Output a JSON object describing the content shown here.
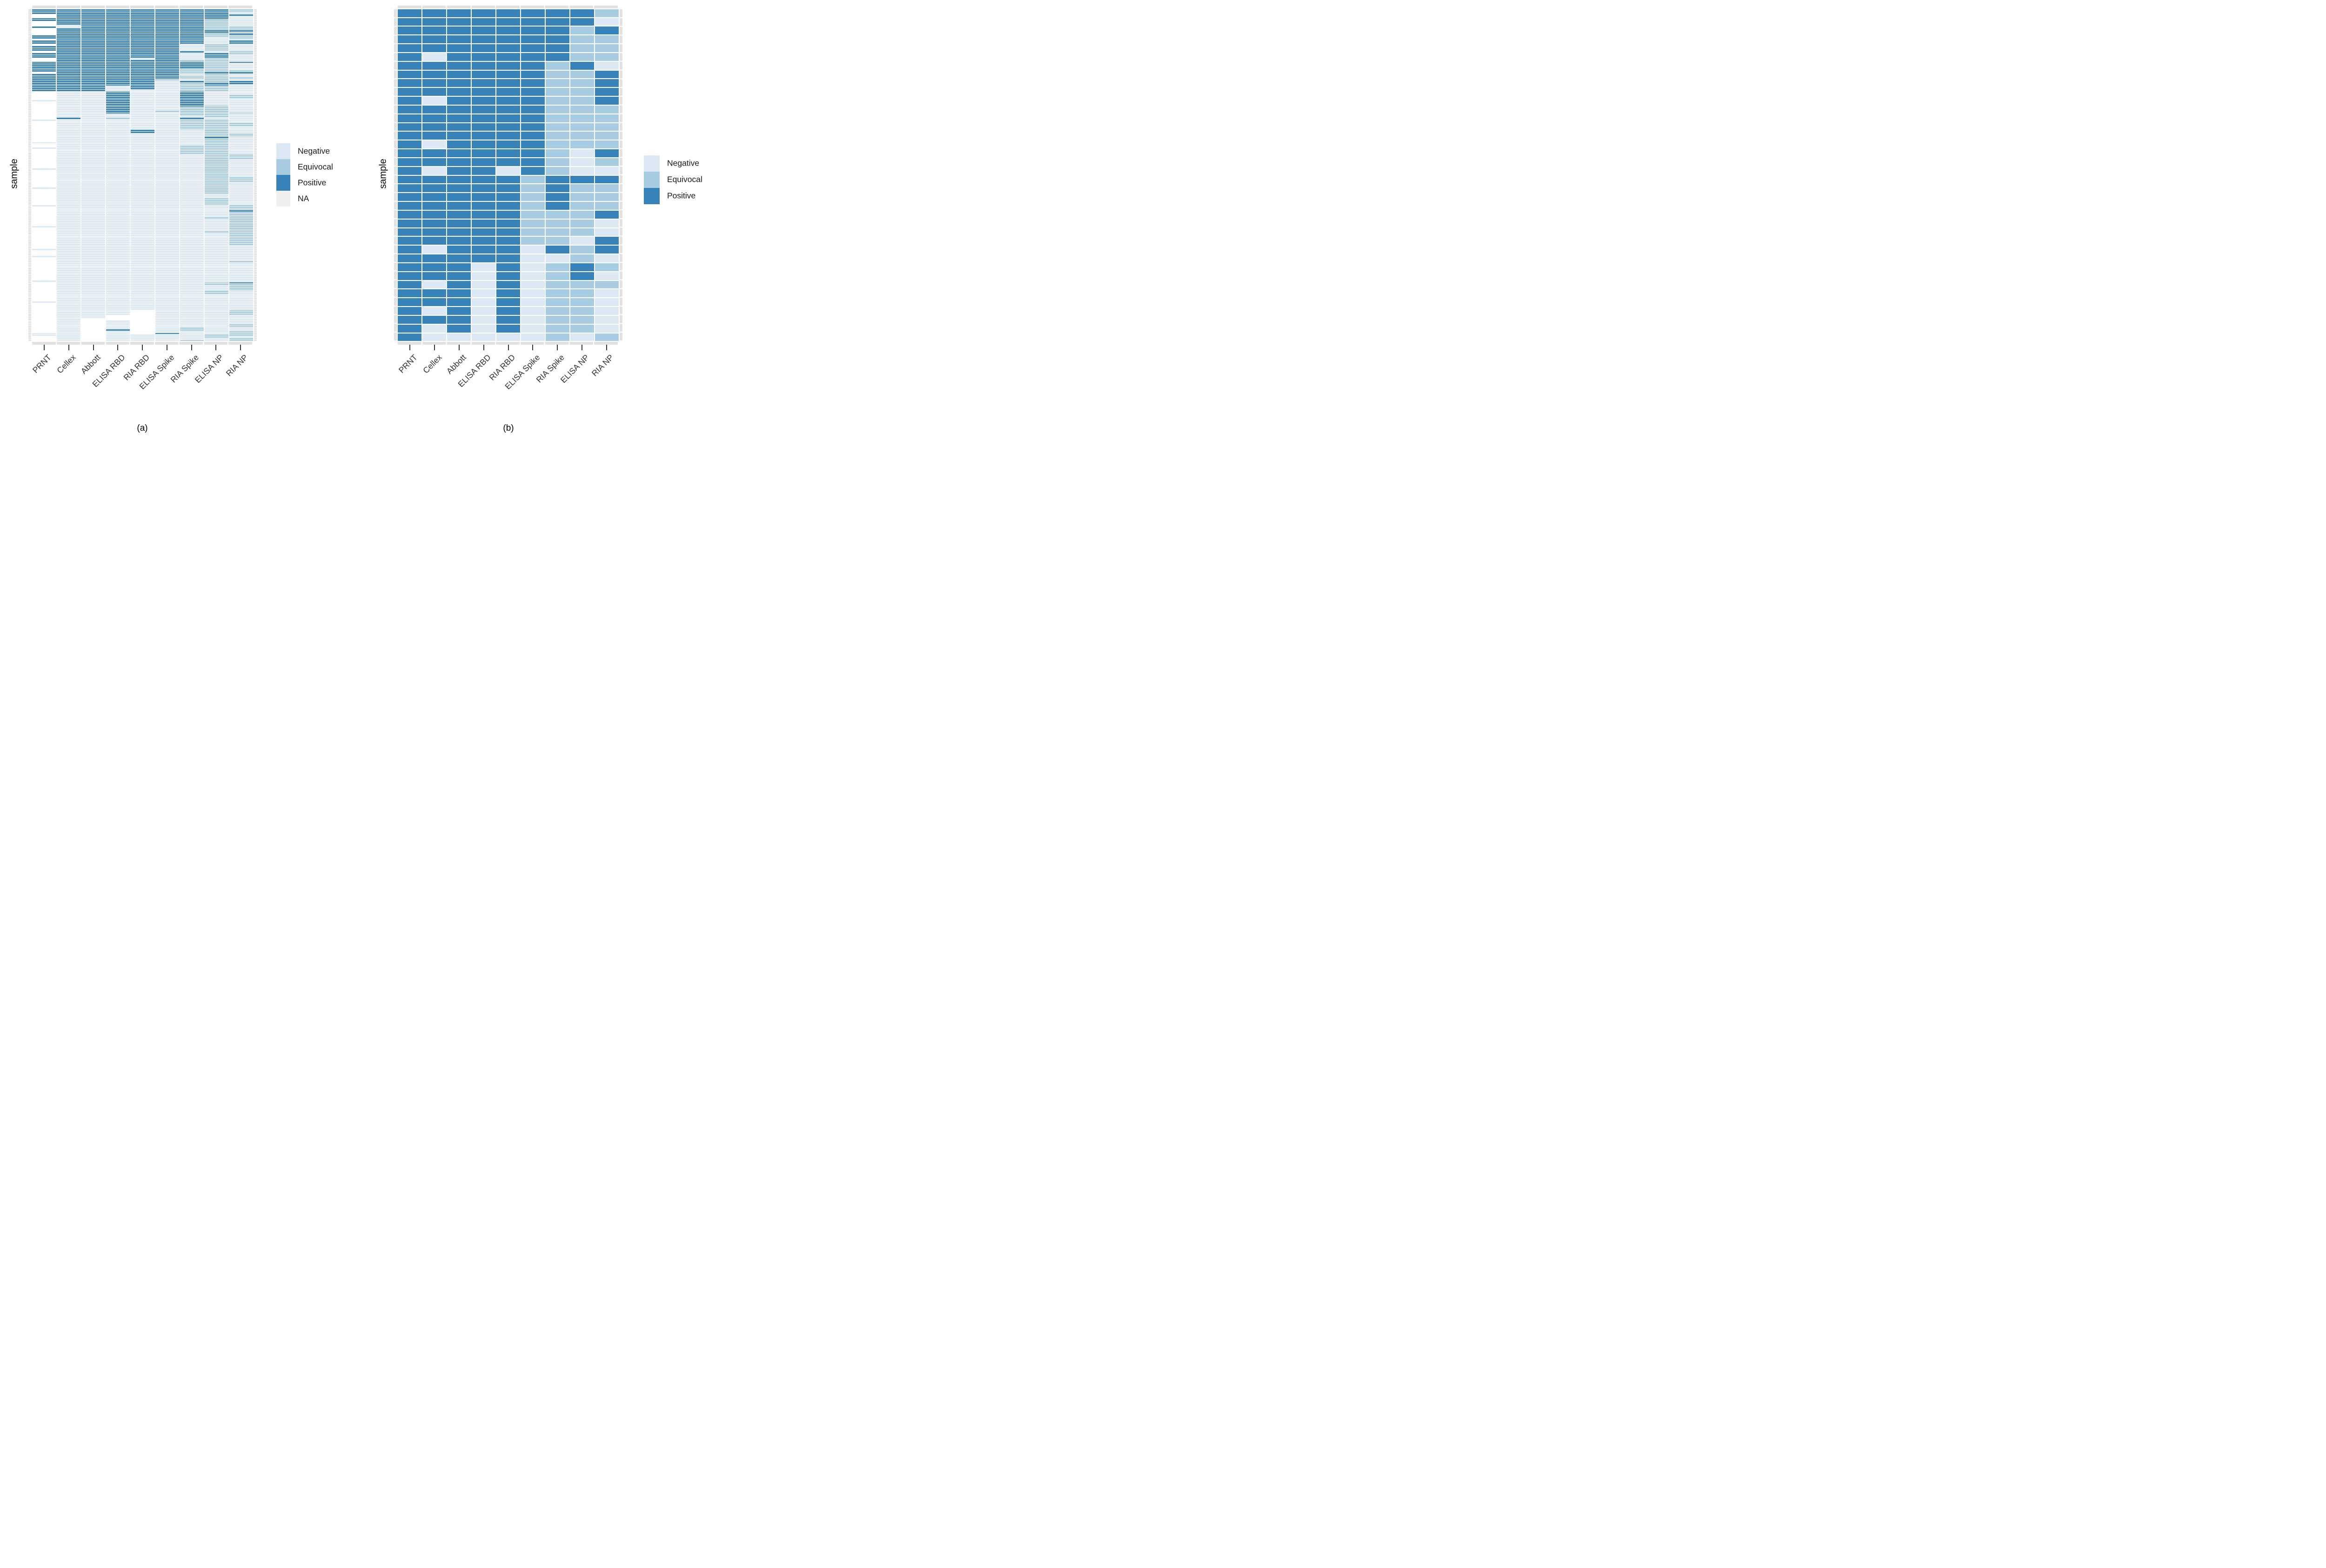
{
  "captions": {
    "a": "(a)",
    "b": "(b)"
  },
  "y_axis_title": "sample",
  "colors": {
    "positive": "#3783b9",
    "equivocal": "#a8cde2",
    "negative": "#dce9f5",
    "na_tile": "#ffffff",
    "na_legend": "#f0f0f0",
    "edge": "#e2e2e2",
    "tick": "#333333",
    "axis_text": "#333333"
  },
  "legend_a": {
    "items": [
      {
        "label": "Negative",
        "key": "N"
      },
      {
        "label": "Equivocal",
        "key": "E"
      },
      {
        "label": "Positive",
        "key": "P"
      },
      {
        "label": "NA",
        "key": "A"
      }
    ]
  },
  "legend_b": {
    "items": [
      {
        "label": "Negative",
        "key": "N"
      },
      {
        "label": "Equivocal",
        "key": "E"
      },
      {
        "label": "Positive",
        "key": "P"
      }
    ]
  },
  "chart_data": [
    {
      "type": "heatmap",
      "panel": "a",
      "caption": "(a)",
      "ylabel": "sample",
      "xlabel": "",
      "legend_position": "right",
      "categories_x": [
        "PRNT",
        "Cellex",
        "Abbott",
        "ELISA RBD",
        "RIA RBD",
        "ELISA Spike",
        "RIA Spike",
        "ELISA NP",
        "RIA NP"
      ],
      "value_levels": [
        "Negative",
        "Equivocal",
        "Positive",
        "NA"
      ],
      "encoding": {
        "P": "Positive",
        "E": "Equivocal",
        "N": "Negative",
        "A": "NA"
      },
      "rows": [
        "PPPPPPPPE",
        "PPPPPPPPE",
        "PPPPPPPPN",
        "APPPPPPPP",
        "APPPPPPPN",
        "PPPPPPPPN",
        "PPPPPPPEN",
        "APPPPPPEN",
        "APPPPPPEN",
        "ANPPPPPEN",
        "PNPPPPPEE",
        "APPPPPPEE",
        "APPPPPPPP",
        "APPPPPPPE",
        "APPPPPPEP",
        "PPPPPPPEE",
        "PPPPPPPNE",
        "APPPPPPNN",
        "PPPPPPPNP",
        "PPPPPPPNP",
        "APPPPPNEN",
        "PPPPPPNEN",
        "PPPPPPNEN",
        "PPPPPPNEN",
        "APPPPPPNE",
        "PPPPPPNPE",
        "PPPPPPNPN",
        "PPPPPPNPN",
        "APPPNPNEN",
        "APPPPPEEN",
        "PPPPPPPEP",
        "PPPPPPPEN",
        "PPPPPPPEN",
        "PPPPPPPEN",
        "PPPPPPEEN",
        "PPPPPPEEE",
        "APPPPPEPP",
        "PPPPPPNEN",
        "PPPPPPEEN",
        "PPPPPPEEE",
        "PPPPPENEN",
        "PPPPPNPEP",
        "PPPPPNEPP",
        "PPPPPNEPN",
        "PPPNPNEEN",
        "PPPNPNEEN",
        "PPPNNNEEN",
        "ANNPNNPNN",
        "ANNPNNPNN",
        "ANNPNNPNE",
        "ANNPNNPNE",
        "ANNPNNPNN",
        "NNNPNNPNN",
        "ANNPNNPNN",
        "ANNPNNPNN",
        "ANNPNNPEN",
        "ANNPNNEEN",
        "ANNPNNEEN",
        "ANNPNEEEN",
        "ANNPNNEEE",
        "ANNNNNEEN",
        "ANNNNNNEN",
        "APNENNPNN",
        "NNNNNNEEN",
        "ANNNNNEEN",
        "ANNNNNEEE",
        "ANNNNNEEE",
        "ANNNNNEEN",
        "ANNNNNEEN",
        "ANNNPNNEN",
        "ANNNPNNEN",
        "ANNNNNNEE",
        "ANNNNNNEE",
        "ANNNNNNPN",
        "ANNNNNNEN",
        "ANNNNNNEN",
        "NNNNNNNEN",
        "ANNNNNNEN",
        "ANNNNNEEN",
        "NNNNNNEEN",
        "ANNNNNEEN",
        "ANNNNNEEN",
        "ANNNNNEEN",
        "ANNNNNNEE",
        "ANNNNNNEE",
        "ANNNNNNEE",
        "ANNNNNNEN",
        "ANNNNNNEN",
        "ANNNNNNEN",
        "ANNNNNNEN",
        "ANNNNNNEN",
        "NNNNNNNEN",
        "ANNNNNNEN",
        "ANNNNNNEN",
        "ANNNNNNEN",
        "ANNNNNNEN",
        "ANNNNNNEE",
        "ANNNNNNEE",
        "ANNNNNNEE",
        "ANNNNNNEN",
        "ANNNNNNEN",
        "ANNNNNNEN",
        "NNNNNNNEN",
        "ANNNNNNEN",
        "ANNNNNNEN",
        "ANNNNNNEN",
        "ANNNNNNNN",
        "ANNNNNNNN",
        "ANNNNNNEN",
        "ANNNNNNEN",
        "ANNNNNNEN",
        "ANNNNNNEN",
        "NNNNNNNNE",
        "ANNNNNNNE",
        "ANNNNNNNE",
        "ANNNNNNNP",
        "ANNNNNNNE",
        "ANNNNNNNE",
        "ANNNNNNNE",
        "ANNNNNNEE",
        "ANNNNNNNE",
        "ANNNNNNNE",
        "ANNNNNNNE",
        "ANNNNNNNE",
        "NNNNNNNNE",
        "ANNNNNNNE",
        "ANNNNNNNE",
        "ANNNNNNEE",
        "ANNNNNNNE",
        "ANNNNNNNE",
        "ANNNNNNNE",
        "ANNNNNNNE",
        "ANNNNNNNE",
        "ANNNNNNNE",
        "ANNNNNNNE",
        "ANNNNNNNN",
        "ANNNNNNNN",
        "NNNNNNNNN",
        "ANNNNNNNN",
        "ANNNNNNNN",
        "ANNNNNNNN",
        "NNNNNNNNN",
        "ANNNNNNNN",
        "ANNNNNNNN",
        "ANNNNNNNE",
        "ANNNNNNNN",
        "ANNNNNNNN",
        "ANNNNNNNN",
        "ANNNNNNNN",
        "ANNNNNNNN",
        "ANNNNNNNN",
        "ANNNNNNNN",
        "ANNNNNNNN",
        "ANNNNNNNN",
        "ANNNNNNNN",
        "NNNNNNNNN",
        "ANNNNNNEP",
        "ANNNNNNEE",
        "ANNNNNNNE",
        "ANNNNNNNE",
        "ANNNNNNNE",
        "ANNNNNNEN",
        "ANNNNNNEN",
        "ANNNNNNNN",
        "ANNNNNNNN",
        "ANNNNNNNN",
        "ANNNNNNNN",
        "NNNNNNNNN",
        "ANNNNNNNN",
        "ANNNNNNNN",
        "ANNNNNNNN",
        "ANNNNNNNN",
        "ANNNANNNE",
        "ANNNANNNE",
        "ANNNANNNE",
        "ANNAANNNN",
        "ANNAANNNN",
        "ANAAANNNN",
        "ANANANNNN",
        "ANANANNNN",
        "ANANANNNE",
        "ANANANNNE",
        "ANANANENN",
        "ANAPANENN",
        "ANANANNNE",
        "NNANAPNNE",
        "NNANNNNEE",
        "ANANNNNEN",
        "ANANNNNNE",
        "ANANNNENE"
      ]
    },
    {
      "type": "heatmap",
      "panel": "b",
      "caption": "(b)",
      "ylabel": "sample",
      "xlabel": "",
      "legend_position": "right",
      "categories_x": [
        "PRNT",
        "Cellex",
        "Abbott",
        "ELISA RBD",
        "RIA RBD",
        "ELISA Spike",
        "RIA Spike",
        "ELISA NP",
        "RIA NP"
      ],
      "value_levels": [
        "Negative",
        "Equivocal",
        "Positive"
      ],
      "encoding": {
        "P": "Positive",
        "E": "Equivocal",
        "N": "Negative"
      },
      "rows": [
        "PPPPPPPPE",
        "PPPPPPPPN",
        "PPPPPPPEP",
        "PPPPPPPEE",
        "PPPPPPPEE",
        "PNPPPPPEE",
        "PPPPPPEPN",
        "PPPPPPEEP",
        "PPPPPPEEP",
        "PPPPPPEEP",
        "PNPPPPEEP",
        "PPPPPPEEE",
        "PPPPPPEEE",
        "PPPPPPEEE",
        "PPPPPPEEE",
        "PNPPPPEEE",
        "PPPPPPENP",
        "PPPPPPENE",
        "PNPPNPENN",
        "PPPPPEPPP",
        "PPPPPEPEE",
        "PPPPPEPEE",
        "PPPPPEPEE",
        "PPPPPEEEP",
        "PPPPPEEEN",
        "PPPPPEEEN",
        "PPPPPEENP",
        "PNPPPNPEP",
        "PPPPPNNEN",
        "PPPNPNEPE",
        "PPPNPNEPN",
        "PNPNPNEEE",
        "PPPNPNEEN",
        "PPPNPNEEN",
        "PNPNPNEEN",
        "PPPNPNEEN",
        "PNPNPNEEN",
        "PNNNNNENE"
      ]
    }
  ]
}
